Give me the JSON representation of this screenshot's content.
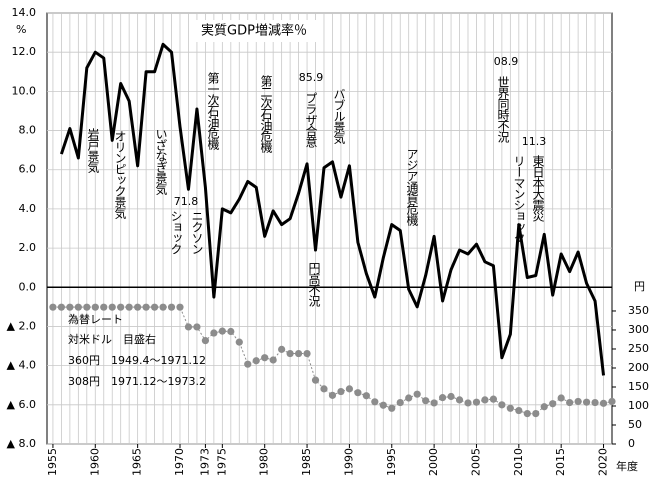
{
  "chart_data": {
    "type": "line",
    "title": "実質GDP増減率％",
    "y_unit": "%",
    "y2_unit": "円",
    "x_label": "年度",
    "x": [
      1955,
      1956,
      1957,
      1958,
      1959,
      1960,
      1961,
      1962,
      1963,
      1964,
      1965,
      1966,
      1967,
      1968,
      1969,
      1970,
      1971,
      1972,
      1973,
      1974,
      1975,
      1976,
      1977,
      1978,
      1979,
      1980,
      1981,
      1982,
      1983,
      1984,
      1985,
      1986,
      1987,
      1988,
      1989,
      1990,
      1991,
      1992,
      1993,
      1994,
      1995,
      1996,
      1997,
      1998,
      1999,
      2000,
      2001,
      2002,
      2003,
      2004,
      2005,
      2006,
      2007,
      2008,
      2009,
      2010,
      2011,
      2012,
      2013,
      2014,
      2015,
      2016,
      2017,
      2018,
      2019,
      2020,
      2021
    ],
    "series": [
      {
        "color": "#000000",
        "values": [
          null,
          6.8,
          8.1,
          6.6,
          11.2,
          12.0,
          11.7,
          7.5,
          10.4,
          9.5,
          6.2,
          11.0,
          11.0,
          12.4,
          12.0,
          8.2,
          5.0,
          9.1,
          5.1,
          -0.5,
          4.0,
          3.8,
          4.5,
          5.4,
          5.1,
          2.6,
          3.9,
          3.2,
          3.5,
          4.8,
          6.3,
          1.9,
          6.1,
          6.4,
          4.6,
          6.2,
          2.3,
          0.7,
          -0.5,
          1.5,
          3.2,
          2.9,
          -0.1,
          -1.0,
          0.6,
          2.6,
          -0.7,
          0.9,
          1.9,
          1.7,
          2.2,
          1.3,
          1.1,
          -3.6,
          -2.4,
          3.2,
          0.5,
          0.6,
          2.7,
          -0.4,
          1.7,
          0.8,
          1.8,
          0.2,
          -0.7,
          -4.5,
          null
        ]
      },
      {
        "name": "為替レート",
        "color": "#8c8c8c",
        "axis": "y2",
        "values": [
          360,
          360,
          360,
          360,
          360,
          360,
          360,
          360,
          360,
          360,
          360,
          360,
          360,
          360,
          360,
          360,
          308,
          308,
          272,
          292,
          297,
          296,
          268,
          210,
          219,
          227,
          221,
          249,
          238,
          238,
          238,
          168,
          145,
          128,
          138,
          145,
          135,
          127,
          111,
          102,
          94,
          109,
          121,
          131,
          114,
          108,
          122,
          125,
          116,
          108,
          110,
          116,
          118,
          103,
          94,
          88,
          80,
          80,
          98,
          106,
          121,
          109,
          112,
          110,
          109,
          107,
          112
        ]
      }
    ],
    "notes": [
      "対米ドル　目盛右",
      "360円　1949.4～1971.12",
      "308円　1971.12～1973.2"
    ],
    "annotations": [
      "岩戸景気",
      "オリンピック景気",
      "いざなぎ景気",
      "71.8",
      "ニクソン",
      "ショック",
      "第一次石油危機",
      "第二次石油危機",
      "85.9",
      "プラザ合意",
      "円高不況",
      "バブル景気",
      "アジア通貨危機",
      "08.9",
      "世界同時不況",
      "リーマンショック",
      "11.3",
      "東日本大震災"
    ],
    "xlim": [
      1954.3,
      2021.0
    ],
    "xticks": [
      1955,
      1960,
      1965,
      1970,
      1973,
      1975,
      1980,
      1985,
      1990,
      1995,
      2000,
      2005,
      2010,
      2015,
      2020
    ],
    "x_minor_ticks": [
      1955,
      1956,
      1957,
      1958,
      1959,
      1960,
      1961,
      1962,
      1963,
      1964,
      1965,
      1966,
      1967,
      1968,
      1969,
      1970,
      1971,
      1972,
      1973,
      1974,
      1975,
      1976,
      1977,
      1978,
      1979,
      1980,
      1981,
      1982,
      1983,
      1984,
      1985,
      1986,
      1987,
      1988,
      1989,
      1990,
      1991,
      1992,
      1993,
      1994,
      1995,
      1996,
      1997,
      1998,
      1999,
      2000,
      2001,
      2002,
      2003,
      2004,
      2005,
      2006,
      2007,
      2008,
      2009,
      2010,
      2011,
      2012,
      2013,
      2014,
      2015,
      2016,
      2017,
      2018,
      2019,
      2020
    ],
    "ylim": [
      -8,
      14
    ],
    "yticks": [
      {
        "value": 14,
        "label": "14.0"
      },
      {
        "value": 12,
        "label": "12.0"
      },
      {
        "value": 10,
        "label": "10.0"
      },
      {
        "value": 8,
        "label": "8.0"
      },
      {
        "value": 6,
        "label": "6.0"
      },
      {
        "value": 4,
        "label": "4.0"
      },
      {
        "value": 2,
        "label": "2.0"
      },
      {
        "value": 0,
        "label": "0.0"
      },
      {
        "value": -2,
        "label": "▲ 2.0"
      },
      {
        "value": -4,
        "label": "▲ 4.0"
      },
      {
        "value": -6,
        "label": "▲ 6.0"
      },
      {
        "value": -8,
        "label": "▲ 8.0"
      }
    ],
    "y2lim": [
      0,
      1134
    ],
    "y2ticks": [
      0,
      50,
      100,
      150,
      200,
      250,
      300,
      350
    ],
    "grid": true
  }
}
